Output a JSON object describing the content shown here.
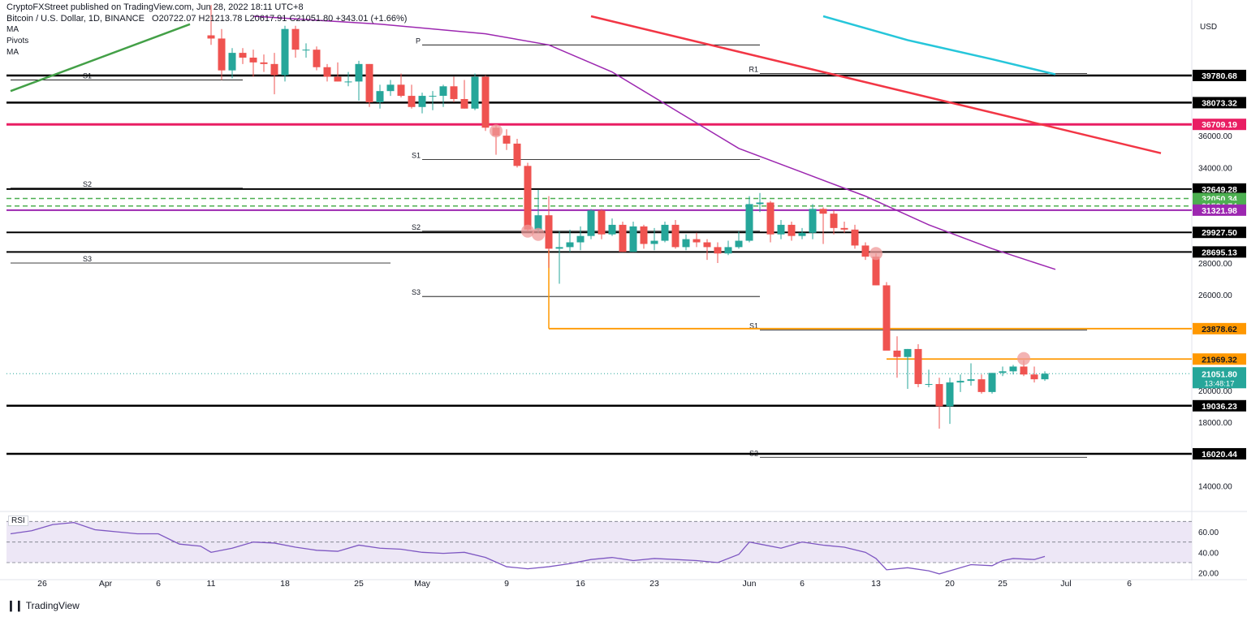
{
  "header": {
    "publisher": "CryptoFXStreet published on TradingView.com, Jun 28, 2022 18:11 UTC+8",
    "symbol": "Bitcoin / U.S. Dollar, 1D, BINANCE",
    "ohlc": "O20722.07  H21213.78  L20617.91  C21051.80  +343.01 (+1.66%)"
  },
  "legend": {
    "ma1": "MA",
    "pivots": "Pivots",
    "ma2": "MA"
  },
  "currency": "USD",
  "rsi_label": "RSI",
  "brand": "TradingView",
  "colors": {
    "up": "#26a69a",
    "down": "#ef5350",
    "support_black": "#000000",
    "magenta": "#e91e63",
    "orange": "#ff9800",
    "green_dash": "#4caf50",
    "purple": "#9c27b0",
    "red_trend": "#f23645",
    "cyan_ma": "#26c6da",
    "rsi_line": "#7e57c2",
    "rsi_band": "#ede7f6"
  },
  "chart_data": {
    "type": "candlestick",
    "ylim": [
      12500,
      43500
    ],
    "y_ticks": [
      14000,
      16000,
      18000,
      20000,
      22000,
      24000,
      26000,
      28000,
      30000,
      32000,
      34000,
      36000,
      38000
    ],
    "x_ticks": [
      "26",
      "Apr",
      "6",
      "11",
      "18",
      "25",
      "May",
      "9",
      "16",
      "23",
      "Jun",
      "6",
      "13",
      "20",
      "25",
      "Jul",
      "6"
    ],
    "x_tick_days": [
      -2,
      4,
      9,
      14,
      21,
      28,
      34,
      42,
      49,
      56,
      65,
      70,
      77,
      84,
      89,
      95,
      101
    ],
    "candles": [
      {
        "d": 14,
        "o": 42300,
        "h": 44200,
        "l": 41700,
        "c": 42100
      },
      {
        "d": 15,
        "o": 42100,
        "h": 42700,
        "l": 39500,
        "c": 40100
      },
      {
        "d": 16,
        "o": 40100,
        "h": 41500,
        "l": 39600,
        "c": 41200
      },
      {
        "d": 17,
        "o": 41200,
        "h": 41500,
        "l": 40500,
        "c": 40900
      },
      {
        "d": 18,
        "o": 40900,
        "h": 41400,
        "l": 39700,
        "c": 40600
      },
      {
        "d": 19,
        "o": 40600,
        "h": 41100,
        "l": 40000,
        "c": 40500
      },
      {
        "d": 20,
        "o": 40500,
        "h": 41200,
        "l": 38600,
        "c": 39800
      },
      {
        "d": 21,
        "o": 39800,
        "h": 42900,
        "l": 39400,
        "c": 42700
      },
      {
        "d": 22,
        "o": 42700,
        "h": 42900,
        "l": 40900,
        "c": 41400
      },
      {
        "d": 23,
        "o": 41400,
        "h": 41800,
        "l": 40900,
        "c": 41400
      },
      {
        "d": 24,
        "o": 41400,
        "h": 41600,
        "l": 40100,
        "c": 40300
      },
      {
        "d": 25,
        "o": 40300,
        "h": 40500,
        "l": 39400,
        "c": 39700
      },
      {
        "d": 26,
        "o": 39700,
        "h": 40600,
        "l": 39400,
        "c": 39400
      },
      {
        "d": 27,
        "o": 39400,
        "h": 40000,
        "l": 39100,
        "c": 39400
      },
      {
        "d": 28,
        "o": 39400,
        "h": 40700,
        "l": 38200,
        "c": 40500
      },
      {
        "d": 29,
        "o": 40500,
        "h": 40500,
        "l": 37800,
        "c": 38100
      },
      {
        "d": 30,
        "o": 38100,
        "h": 39200,
        "l": 37700,
        "c": 38800
      },
      {
        "d": 31,
        "o": 38800,
        "h": 39500,
        "l": 38500,
        "c": 39200
      },
      {
        "d": 32,
        "o": 39200,
        "h": 39900,
        "l": 38400,
        "c": 38500
      },
      {
        "d": 33,
        "o": 38500,
        "h": 39200,
        "l": 37700,
        "c": 37800
      },
      {
        "d": 34,
        "o": 37800,
        "h": 38700,
        "l": 37400,
        "c": 38500
      },
      {
        "d": 35,
        "o": 38500,
        "h": 38800,
        "l": 37600,
        "c": 38500
      },
      {
        "d": 36,
        "o": 38500,
        "h": 39200,
        "l": 37800,
        "c": 39100
      },
      {
        "d": 37,
        "o": 39100,
        "h": 39700,
        "l": 38100,
        "c": 38300
      },
      {
        "d": 38,
        "o": 38300,
        "h": 39500,
        "l": 37700,
        "c": 37700
      },
      {
        "d": 39,
        "o": 37700,
        "h": 39900,
        "l": 37600,
        "c": 39700
      },
      {
        "d": 40,
        "o": 39700,
        "h": 39800,
        "l": 36300,
        "c": 36500
      },
      {
        "d": 41,
        "o": 36500,
        "h": 36700,
        "l": 34800,
        "c": 36000
      },
      {
        "d": 42,
        "o": 36000,
        "h": 36400,
        "l": 35100,
        "c": 35500
      },
      {
        "d": 43,
        "o": 35500,
        "h": 35800,
        "l": 34000,
        "c": 34100
      },
      {
        "d": 44,
        "o": 34100,
        "h": 34300,
        "l": 30000,
        "c": 30100
      },
      {
        "d": 45,
        "o": 30100,
        "h": 32600,
        "l": 29900,
        "c": 31000
      },
      {
        "d": 46,
        "o": 31000,
        "h": 32200,
        "l": 27700,
        "c": 28900
      },
      {
        "d": 47,
        "o": 28900,
        "h": 30000,
        "l": 26700,
        "c": 29000
      },
      {
        "d": 48,
        "o": 29000,
        "h": 30100,
        "l": 28700,
        "c": 29300
      },
      {
        "d": 49,
        "o": 29300,
        "h": 30300,
        "l": 28800,
        "c": 29700
      },
      {
        "d": 50,
        "o": 29700,
        "h": 31400,
        "l": 29500,
        "c": 31300
      },
      {
        "d": 51,
        "o": 31300,
        "h": 31400,
        "l": 29500,
        "c": 29800
      },
      {
        "d": 52,
        "o": 29800,
        "h": 30800,
        "l": 29700,
        "c": 30400
      },
      {
        "d": 53,
        "o": 30400,
        "h": 30600,
        "l": 28700,
        "c": 28700
      },
      {
        "d": 54,
        "o": 28700,
        "h": 30600,
        "l": 28700,
        "c": 30300
      },
      {
        "d": 55,
        "o": 30300,
        "h": 30400,
        "l": 28900,
        "c": 29200
      },
      {
        "d": 56,
        "o": 29200,
        "h": 30200,
        "l": 28800,
        "c": 29400
      },
      {
        "d": 57,
        "o": 29400,
        "h": 30600,
        "l": 29300,
        "c": 30400
      },
      {
        "d": 58,
        "o": 30400,
        "h": 30700,
        "l": 28900,
        "c": 29000
      },
      {
        "d": 59,
        "o": 29000,
        "h": 29800,
        "l": 28800,
        "c": 29500
      },
      {
        "d": 60,
        "o": 29500,
        "h": 29900,
        "l": 29000,
        "c": 29300
      },
      {
        "d": 61,
        "o": 29300,
        "h": 29500,
        "l": 28200,
        "c": 29000
      },
      {
        "d": 62,
        "o": 29000,
        "h": 29300,
        "l": 28000,
        "c": 28600
      },
      {
        "d": 63,
        "o": 28600,
        "h": 29400,
        "l": 28500,
        "c": 29000
      },
      {
        "d": 64,
        "o": 29000,
        "h": 30000,
        "l": 28900,
        "c": 29400
      },
      {
        "d": 65,
        "o": 29400,
        "h": 32200,
        "l": 29300,
        "c": 31700
      },
      {
        "d": 66,
        "o": 31700,
        "h": 32400,
        "l": 31200,
        "c": 31800
      },
      {
        "d": 67,
        "o": 31800,
        "h": 31900,
        "l": 29300,
        "c": 29800
      },
      {
        "d": 68,
        "o": 29800,
        "h": 30700,
        "l": 29500,
        "c": 30400
      },
      {
        "d": 69,
        "o": 30400,
        "h": 30600,
        "l": 29400,
        "c": 29700
      },
      {
        "d": 70,
        "o": 29700,
        "h": 30200,
        "l": 29500,
        "c": 29900
      },
      {
        "d": 71,
        "o": 29900,
        "h": 31700,
        "l": 29500,
        "c": 31400
      },
      {
        "d": 72,
        "o": 31400,
        "h": 31500,
        "l": 29200,
        "c": 31100
      },
      {
        "d": 73,
        "o": 31100,
        "h": 31300,
        "l": 29800,
        "c": 30200
      },
      {
        "d": 74,
        "o": 30200,
        "h": 30600,
        "l": 29900,
        "c": 30100
      },
      {
        "d": 75,
        "o": 30100,
        "h": 30400,
        "l": 28900,
        "c": 29100
      },
      {
        "d": 76,
        "o": 29100,
        "h": 29300,
        "l": 28200,
        "c": 28400
      },
      {
        "d": 77,
        "o": 28400,
        "h": 28600,
        "l": 26600,
        "c": 26600
      },
      {
        "d": 78,
        "o": 26600,
        "h": 26800,
        "l": 22600,
        "c": 22500
      },
      {
        "d": 79,
        "o": 22500,
        "h": 23400,
        "l": 20800,
        "c": 22100
      },
      {
        "d": 80,
        "o": 22100,
        "h": 22600,
        "l": 20100,
        "c": 22600
      },
      {
        "d": 81,
        "o": 22600,
        "h": 22900,
        "l": 20200,
        "c": 20400
      },
      {
        "d": 82,
        "o": 20400,
        "h": 21300,
        "l": 20200,
        "c": 20400
      },
      {
        "d": 83,
        "o": 20400,
        "h": 20800,
        "l": 17600,
        "c": 19000
      },
      {
        "d": 84,
        "o": 19000,
        "h": 20800,
        "l": 17900,
        "c": 20500
      },
      {
        "d": 85,
        "o": 20500,
        "h": 21000,
        "l": 19900,
        "c": 20600
      },
      {
        "d": 86,
        "o": 20600,
        "h": 21700,
        "l": 20300,
        "c": 20700
      },
      {
        "d": 87,
        "o": 20700,
        "h": 21000,
        "l": 19800,
        "c": 19900
      },
      {
        "d": 88,
        "o": 19900,
        "h": 21100,
        "l": 19800,
        "c": 21100
      },
      {
        "d": 89,
        "o": 21100,
        "h": 21500,
        "l": 20900,
        "c": 21200
      },
      {
        "d": 90,
        "o": 21200,
        "h": 21600,
        "l": 21000,
        "c": 21500
      },
      {
        "d": 91,
        "o": 21500,
        "h": 21900,
        "l": 20900,
        "c": 21000
      },
      {
        "d": 92,
        "o": 21000,
        "h": 21500,
        "l": 20500,
        "c": 20700
      },
      {
        "d": 93,
        "o": 20700,
        "h": 21200,
        "l": 20600,
        "c": 21051
      }
    ],
    "levels": [
      {
        "value": 39780.68,
        "label": "39780.68",
        "color": "#000000",
        "width": 2.5,
        "dash": ""
      },
      {
        "value": 38073.32,
        "label": "38073.32",
        "color": "#000000",
        "width": 2.5,
        "dash": ""
      },
      {
        "value": 36709.19,
        "label": "36709.19",
        "color": "#e91e63",
        "width": 3,
        "dash": ""
      },
      {
        "value": 32649.28,
        "label": "32649.28",
        "color": "#000000",
        "width": 2,
        "dash": ""
      },
      {
        "value": 32050.34,
        "label": "32050.34",
        "color": "#4caf50",
        "width": 1.5,
        "dash": "6,4"
      },
      {
        "value": 31584.74,
        "label": "31584.74",
        "color": "#4caf50",
        "width": 1.5,
        "dash": "6,4"
      },
      {
        "value": 31321.98,
        "label": "31321.98",
        "color": "#9c27b0",
        "width": 2,
        "dash": ""
      },
      {
        "value": 29927.5,
        "label": "29927.50",
        "color": "#000000",
        "width": 2,
        "dash": ""
      },
      {
        "value": 28695.13,
        "label": "28695.13",
        "color": "#000000",
        "width": 2,
        "dash": ""
      },
      {
        "value": 19036.23,
        "label": "19036.23",
        "color": "#000000",
        "width": 2.5,
        "dash": ""
      },
      {
        "value": 16020.44,
        "label": "16020.44",
        "color": "#000000",
        "width": 2.5,
        "dash": ""
      }
    ],
    "orange_levels": [
      {
        "value": 23878.62,
        "label": "23878.62",
        "from_day": 46
      },
      {
        "value": 21969.32,
        "label": "21969.32",
        "from_day": 78
      }
    ],
    "current_price": {
      "label": "21051.80",
      "timer": "13:48:17",
      "value": 21051.8
    },
    "pivot_segments": [
      {
        "label": "S1",
        "value": 39500,
        "from": -5,
        "to": 17
      },
      {
        "label": "S2",
        "value": 32700,
        "from": -5,
        "to": 17
      },
      {
        "label": "S3",
        "value": 28000,
        "from": -5,
        "to": 31
      },
      {
        "label": "P",
        "value": 41700,
        "from": 34,
        "to": 66
      },
      {
        "label": "S1",
        "value": 34500,
        "from": 34,
        "to": 66
      },
      {
        "label": "S2",
        "value": 30000,
        "from": 34,
        "to": 66
      },
      {
        "label": "S3",
        "value": 25900,
        "from": 34,
        "to": 66
      },
      {
        "label": "R1",
        "value": 39900,
        "from": 66,
        "to": 97
      },
      {
        "label": "S1",
        "value": 23800,
        "from": 66,
        "to": 97
      },
      {
        "label": "S2",
        "value": 15800,
        "from": 66,
        "to": 97
      }
    ],
    "purple_ma": [
      [
        18,
        43500
      ],
      [
        30,
        43000
      ],
      [
        40,
        42400
      ],
      [
        46,
        41700
      ],
      [
        52,
        40000
      ],
      [
        58,
        37600
      ],
      [
        64,
        35200
      ],
      [
        70,
        33700
      ],
      [
        76,
        32200
      ],
      [
        82,
        30400
      ],
      [
        88,
        28900
      ],
      [
        94,
        27600
      ]
    ],
    "cyan_ma": [
      [
        72,
        43500
      ],
      [
        80,
        42000
      ],
      [
        88,
        40800
      ],
      [
        94,
        39850
      ]
    ],
    "red_trend": [
      [
        50,
        43500
      ],
      [
        104,
        34900
      ]
    ],
    "green_trend": [
      [
        -5,
        38800
      ],
      [
        12,
        43000
      ]
    ],
    "pink_markers": [
      [
        41,
        36300
      ],
      [
        44,
        30000
      ],
      [
        45,
        29800
      ],
      [
        77,
        28600
      ],
      [
        91,
        22000
      ]
    ],
    "rsi": {
      "ylim": [
        15,
        75
      ],
      "levels": [
        70,
        50,
        30
      ],
      "y_ticks": [
        20,
        40,
        60
      ],
      "values": [
        [
          -5,
          58
        ],
        [
          -3,
          61
        ],
        [
          -1,
          67
        ],
        [
          1,
          69
        ],
        [
          3,
          62
        ],
        [
          5,
          60
        ],
        [
          7,
          58
        ],
        [
          9,
          58
        ],
        [
          11,
          48
        ],
        [
          13,
          46
        ],
        [
          14,
          40
        ],
        [
          16,
          44
        ],
        [
          18,
          50
        ],
        [
          20,
          49
        ],
        [
          22,
          45
        ],
        [
          24,
          42
        ],
        [
          26,
          41
        ],
        [
          28,
          47
        ],
        [
          30,
          44
        ],
        [
          32,
          43
        ],
        [
          34,
          40
        ],
        [
          36,
          39
        ],
        [
          38,
          40
        ],
        [
          40,
          35
        ],
        [
          42,
          26
        ],
        [
          44,
          24
        ],
        [
          46,
          26
        ],
        [
          48,
          29
        ],
        [
          50,
          33
        ],
        [
          52,
          35
        ],
        [
          54,
          32
        ],
        [
          56,
          34
        ],
        [
          58,
          33
        ],
        [
          60,
          32
        ],
        [
          62,
          30
        ],
        [
          64,
          38
        ],
        [
          65,
          50
        ],
        [
          66,
          48
        ],
        [
          68,
          44
        ],
        [
          70,
          50
        ],
        [
          72,
          47
        ],
        [
          74,
          45
        ],
        [
          76,
          40
        ],
        [
          77,
          34
        ],
        [
          78,
          23
        ],
        [
          80,
          25
        ],
        [
          82,
          22
        ],
        [
          83,
          19
        ],
        [
          84,
          22
        ],
        [
          86,
          28
        ],
        [
          88,
          27
        ],
        [
          89,
          32
        ],
        [
          90,
          34
        ],
        [
          92,
          33
        ],
        [
          93,
          36
        ]
      ]
    }
  }
}
